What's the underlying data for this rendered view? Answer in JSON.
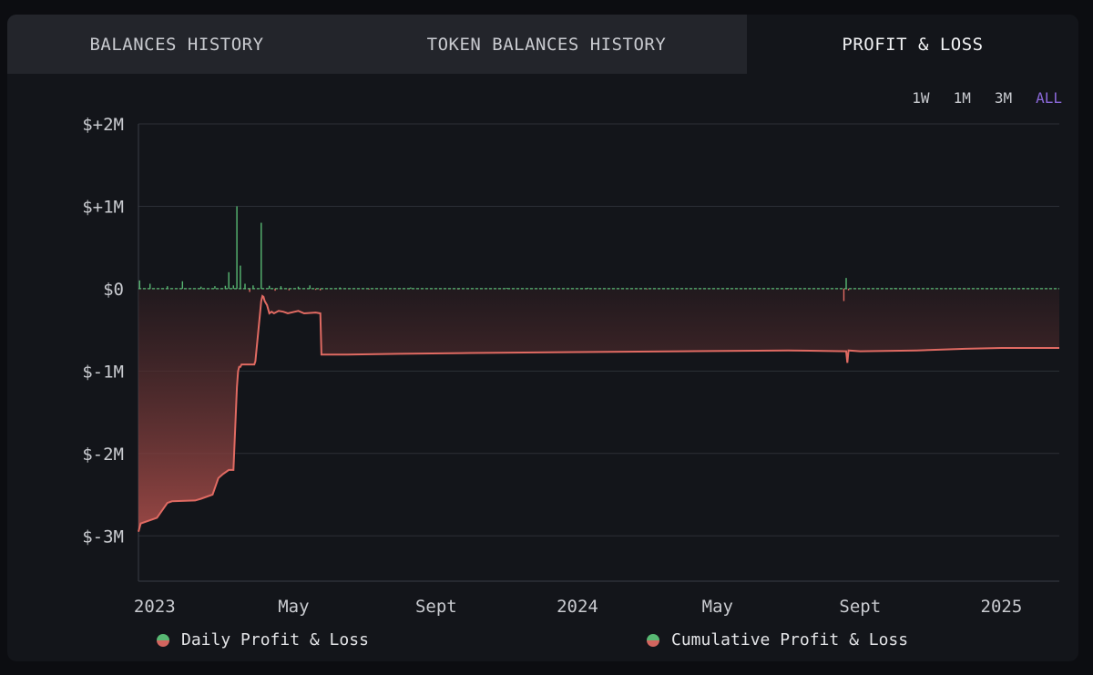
{
  "tabs": [
    {
      "label": "BALANCES HISTORY"
    },
    {
      "label": "TOKEN BALANCES HISTORY"
    },
    {
      "label": "PROFIT & LOSS"
    }
  ],
  "active_tab": "PROFIT & LOSS",
  "ranges": [
    {
      "label": "1W"
    },
    {
      "label": "1M"
    },
    {
      "label": "3M"
    },
    {
      "label": "ALL"
    }
  ],
  "active_range": "ALL",
  "colors": {
    "cumulative": "#e06a62",
    "daily_positive": "#58b873",
    "daily_negative": "#e06a62",
    "active_range": "#8a68d8"
  },
  "legend": [
    {
      "label": "Daily Profit & Loss",
      "icon": "legend-dot-icon"
    },
    {
      "label": "Cumulative Profit & Loss",
      "icon": "legend-dot-icon"
    }
  ],
  "chart_data": {
    "type": "line",
    "x_tick_labels": [
      "2023",
      "May",
      "Sept",
      "2024",
      "May",
      "Sept",
      "2025"
    ],
    "x_tick_dates": [
      "2023-01-01",
      "2023-05-01",
      "2023-09-01",
      "2024-01-01",
      "2024-05-01",
      "2024-09-01",
      "2025-01-01"
    ],
    "xlim": [
      "2022-12-18",
      "2025-02-20"
    ],
    "y_tick_labels": [
      "$+2M",
      "$+1M",
      "$0",
      "$-1M",
      "$-2M",
      "$-3M"
    ],
    "y_tick_values": [
      2000000,
      1000000,
      0,
      -1000000,
      -2000000,
      -3000000
    ],
    "ylim": [
      -3550000,
      2000000
    ],
    "grid": true,
    "legend_position": "bottom",
    "series": [
      {
        "name": "Cumulative Profit & Loss",
        "x": [
          "2022-12-18",
          "2022-12-20",
          "2022-12-30",
          "2023-01-03",
          "2023-01-12",
          "2023-01-16",
          "2023-02-05",
          "2023-02-10",
          "2023-02-20",
          "2023-02-25",
          "2023-03-01",
          "2023-03-06",
          "2023-03-10",
          "2023-03-13",
          "2023-03-14",
          "2023-03-15",
          "2023-03-16",
          "2023-03-17",
          "2023-03-28",
          "2023-03-29",
          "2023-04-03",
          "2023-04-04",
          "2023-04-05",
          "2023-04-06",
          "2023-04-08",
          "2023-04-10",
          "2023-04-12",
          "2023-04-14",
          "2023-04-18",
          "2023-04-22",
          "2023-04-26",
          "2023-05-05",
          "2023-05-10",
          "2023-05-20",
          "2023-05-24",
          "2023-05-25",
          "2023-06-15",
          "2023-08-01",
          "2023-10-01",
          "2024-01-01",
          "2024-04-01",
          "2024-07-01",
          "2024-08-20",
          "2024-08-21",
          "2024-08-22",
          "2024-09-01",
          "2024-10-20",
          "2024-12-01",
          "2025-01-01",
          "2025-02-20"
        ],
        "values": [
          -2950000,
          -2850000,
          -2800000,
          -2780000,
          -2600000,
          -2580000,
          -2570000,
          -2550000,
          -2500000,
          -2300000,
          -2250000,
          -2200000,
          -2200000,
          -1200000,
          -1000000,
          -950000,
          -950000,
          -920000,
          -920000,
          -880000,
          -150000,
          -90000,
          -100000,
          -150000,
          -200000,
          -300000,
          -280000,
          -300000,
          -270000,
          -280000,
          -300000,
          -270000,
          -300000,
          -290000,
          -300000,
          -800000,
          -800000,
          -790000,
          -780000,
          -770000,
          -760000,
          -750000,
          -760000,
          -900000,
          -750000,
          -760000,
          -750000,
          -730000,
          -720000,
          -720000
        ]
      },
      {
        "name": "Daily Profit & Loss",
        "x": [
          "2022-12-19",
          "2022-12-28",
          "2023-01-12",
          "2023-01-25",
          "2023-02-10",
          "2023-02-22",
          "2023-03-03",
          "2023-03-06",
          "2023-03-10",
          "2023-03-13",
          "2023-03-16",
          "2023-03-20",
          "2023-03-24",
          "2023-03-27",
          "2023-04-03",
          "2023-04-10",
          "2023-04-15",
          "2023-04-20",
          "2023-04-27",
          "2023-05-05",
          "2023-05-15",
          "2023-05-20",
          "2023-05-24",
          "2023-06-10",
          "2023-07-05",
          "2023-08-10",
          "2023-09-20",
          "2023-11-01",
          "2024-01-10",
          "2024-03-01",
          "2024-05-10",
          "2024-07-01",
          "2024-08-18",
          "2024-08-20",
          "2024-08-22",
          "2024-10-01",
          "2024-12-01",
          "2025-01-20"
        ],
        "values": [
          100000,
          60000,
          30000,
          90000,
          25000,
          30000,
          35000,
          200000,
          40000,
          1000000,
          280000,
          60000,
          -40000,
          40000,
          800000,
          35000,
          -25000,
          30000,
          -20000,
          25000,
          40000,
          -15000,
          -20000,
          15000,
          -10000,
          15000,
          -10000,
          10000,
          12000,
          -8000,
          10000,
          8000,
          -150000,
          130000,
          -20000,
          10000,
          -8000,
          8000
        ]
      }
    ]
  }
}
